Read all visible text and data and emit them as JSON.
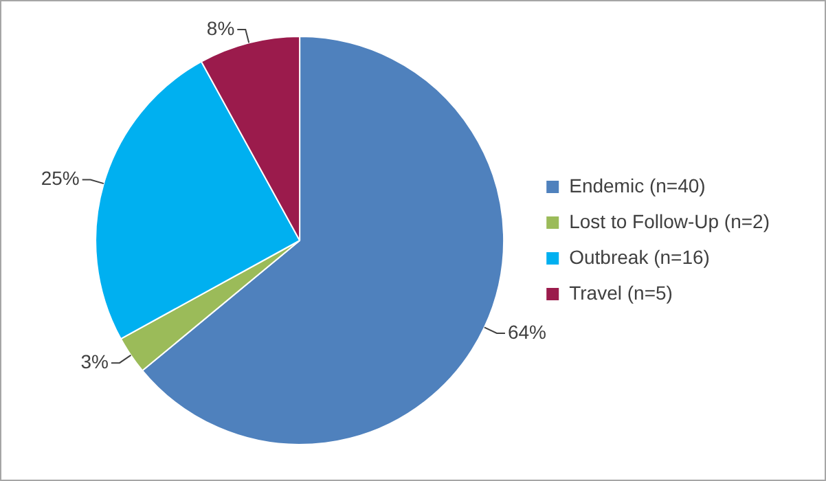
{
  "chart_data": {
    "type": "pie",
    "categories": [
      "Endemic (n=40)",
      "Lost to Follow-Up (n=2)",
      "Outbreak (n=16)",
      "Travel (n=5)"
    ],
    "values": [
      64,
      3,
      25,
      8
    ],
    "colors": [
      "#4f81bd",
      "#9bbb59",
      "#00b0f0",
      "#9b1b4c"
    ],
    "value_labels": [
      "64%",
      "3%",
      "25%",
      "8%"
    ],
    "legend": "right"
  }
}
